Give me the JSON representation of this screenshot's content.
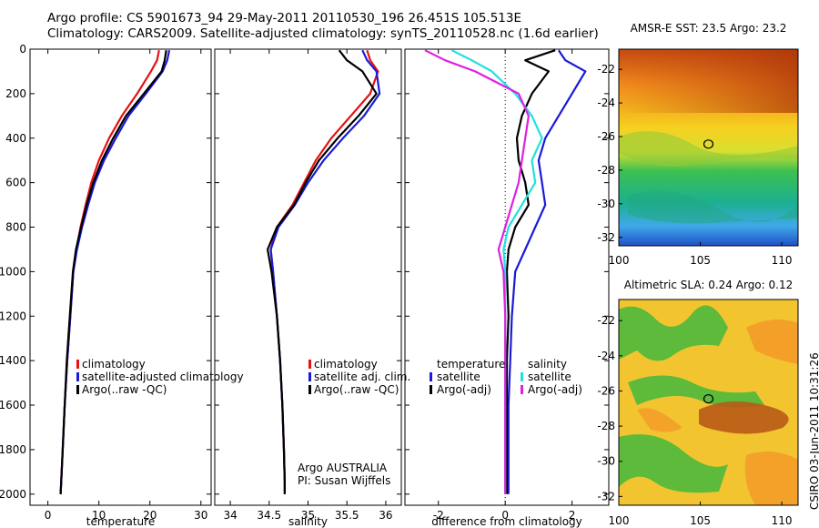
{
  "header": {
    "line1": "Argo profile: CS 5901673_94 29-May-2011 20110530_196 26.451S 105.513E",
    "line2": "Climatology: CARS2009. Satellite-adjusted climatology: synTS_20110528.nc (1.6d earlier)"
  },
  "side_label": "CSIRO 03-Jun-2011 10:31:26",
  "colors": {
    "red": "#e81010",
    "blue": "#1a1ad8",
    "black": "#000000",
    "cyan": "#22e0e0",
    "magenta": "#e020e0"
  },
  "chart_data": [
    {
      "id": "temperature",
      "type": "line",
      "xlabel": "temperature",
      "xlim": [
        -3.5,
        32
      ],
      "xticks": [
        0,
        10,
        20,
        30
      ],
      "ylim": [
        0,
        2050
      ],
      "yticks": [
        0,
        200,
        400,
        600,
        800,
        1000,
        1200,
        1400,
        1600,
        1800,
        2000
      ],
      "y_reversed": true,
      "legend": [
        "climatology",
        "satellite-adjusted climatology",
        "Argo(..raw -QC)"
      ],
      "series": [
        {
          "name": "climatology",
          "color": "red",
          "x": [
            21.8,
            21.4,
            20.2,
            17.5,
            14.5,
            12.0,
            10.0,
            8.5,
            7.4,
            6.4,
            5.6,
            5.0,
            4.4,
            3.8,
            3.3,
            2.9,
            2.6,
            2.5
          ],
          "y": [
            5,
            50,
            100,
            200,
            300,
            400,
            500,
            600,
            700,
            800,
            900,
            1000,
            1200,
            1400,
            1600,
            1800,
            1950,
            2000
          ]
        },
        {
          "name": "satellite-adjusted climatology",
          "color": "blue",
          "x": [
            23.8,
            23.4,
            22.5,
            19.2,
            15.8,
            13.3,
            11.0,
            9.2,
            7.9,
            6.7,
            5.7,
            5.0,
            4.4,
            3.8,
            3.3,
            2.9,
            2.6,
            2.5
          ],
          "y": [
            5,
            50,
            100,
            200,
            300,
            400,
            500,
            600,
            700,
            800,
            900,
            1000,
            1200,
            1400,
            1600,
            1800,
            1950,
            2000
          ]
        },
        {
          "name": "Argo(..raw -QC)",
          "color": "black",
          "x": [
            23.2,
            22.9,
            22.3,
            18.8,
            15.3,
            12.8,
            10.6,
            8.9,
            7.6,
            6.5,
            5.5,
            4.9,
            4.3,
            3.7,
            3.3,
            2.9,
            2.6,
            2.5
          ],
          "y": [
            5,
            50,
            100,
            200,
            300,
            400,
            500,
            600,
            700,
            800,
            900,
            1000,
            1200,
            1400,
            1600,
            1800,
            1950,
            2000
          ]
        }
      ]
    },
    {
      "id": "salinity",
      "type": "line",
      "xlabel": "salinity",
      "xlim": [
        33.8,
        36.2
      ],
      "xticks": [
        34,
        34.5,
        35,
        35.5,
        36
      ],
      "ylim": [
        0,
        2050
      ],
      "y_reversed": true,
      "legend": [
        "climatology",
        "satellite adj. clim.",
        "Argo(..raw -QC)"
      ],
      "annotation": [
        "Argo AUSTRALIA",
        "PI: Susan Wijffels"
      ],
      "series": [
        {
          "name": "climatology",
          "color": "red",
          "x": [
            35.76,
            35.8,
            35.9,
            35.8,
            35.55,
            35.3,
            35.1,
            34.95,
            34.8,
            34.6,
            34.52,
            34.55,
            34.6,
            34.64,
            34.67,
            34.69,
            34.7,
            34.7
          ],
          "y": [
            5,
            50,
            100,
            200,
            300,
            400,
            500,
            600,
            700,
            800,
            900,
            1000,
            1200,
            1400,
            1600,
            1800,
            1950,
            2000
          ]
        },
        {
          "name": "satellite adj. clim.",
          "color": "blue",
          "x": [
            35.7,
            35.76,
            35.88,
            35.92,
            35.72,
            35.45,
            35.2,
            35.0,
            34.83,
            34.62,
            34.52,
            34.55,
            34.6,
            34.64,
            34.67,
            34.69,
            34.7,
            34.7
          ],
          "y": [
            5,
            50,
            100,
            200,
            300,
            400,
            500,
            600,
            700,
            800,
            900,
            1000,
            1200,
            1400,
            1600,
            1800,
            1950,
            2000
          ]
        },
        {
          "name": "Argo(..raw -QC)",
          "color": "black",
          "x": [
            35.4,
            35.5,
            35.7,
            35.88,
            35.65,
            35.38,
            35.14,
            34.97,
            34.82,
            34.6,
            34.48,
            34.53,
            34.6,
            34.64,
            34.67,
            34.69,
            34.7,
            34.7
          ],
          "y": [
            5,
            50,
            100,
            200,
            300,
            400,
            500,
            600,
            700,
            800,
            900,
            1000,
            1200,
            1400,
            1600,
            1800,
            1950,
            2000
          ]
        }
      ]
    },
    {
      "id": "difference",
      "type": "line",
      "xlabel": "difference from climatology",
      "xlim": [
        -3,
        3.1
      ],
      "xticks": [
        -2,
        0,
        2
      ],
      "ylim": [
        0,
        2050
      ],
      "y_reversed": true,
      "legend_groups": [
        {
          "title": "temperature",
          "entries": [
            "satellite",
            "Argo(-adj)"
          ]
        },
        {
          "title": "salinity",
          "entries": [
            "satellite",
            "Argo(-adj)"
          ]
        }
      ],
      "series": [
        {
          "name": "temperature satellite",
          "color": "blue",
          "x": [
            1.6,
            1.8,
            2.4,
            2.0,
            1.6,
            1.2,
            1.0,
            1.1,
            1.2,
            0.9,
            0.6,
            0.3,
            0.2,
            0.15,
            0.1,
            0.1,
            0.1,
            0.1
          ],
          "y": [
            5,
            50,
            100,
            200,
            300,
            400,
            500,
            600,
            700,
            800,
            900,
            1000,
            1200,
            1400,
            1600,
            1800,
            1950,
            2000
          ]
        },
        {
          "name": "temperature Argo(-adj)",
          "color": "black",
          "x": [
            1.5,
            0.6,
            1.3,
            0.8,
            0.5,
            0.35,
            0.4,
            0.6,
            0.7,
            0.3,
            0.1,
            0.05,
            0.1,
            0.05,
            0.05,
            0.05,
            0.05,
            0.05
          ],
          "y": [
            5,
            50,
            100,
            200,
            300,
            400,
            500,
            600,
            700,
            800,
            900,
            1000,
            1200,
            1400,
            1600,
            1800,
            1950,
            2000
          ]
        },
        {
          "name": "salinity satellite",
          "color": "cyan",
          "x": [
            -1.6,
            -1.0,
            -0.4,
            0.3,
            0.8,
            1.1,
            0.8,
            0.9,
            0.5,
            0.1,
            -0.05,
            0.0,
            0.0,
            0.0,
            0.0,
            0.0,
            0.0,
            0.0
          ],
          "y": [
            5,
            50,
            100,
            200,
            300,
            400,
            500,
            600,
            700,
            800,
            900,
            1000,
            1200,
            1400,
            1600,
            1800,
            1950,
            2000
          ]
        },
        {
          "name": "salinity Argo(-adj)",
          "color": "magenta",
          "x": [
            -2.4,
            -1.8,
            -0.9,
            0.4,
            0.7,
            0.6,
            0.5,
            0.4,
            0.2,
            0.0,
            -0.2,
            -0.05,
            0.0,
            0.0,
            0.0,
            0.0,
            0.0,
            0.0
          ],
          "y": [
            5,
            50,
            100,
            200,
            300,
            400,
            500,
            600,
            700,
            800,
            900,
            1000,
            1200,
            1400,
            1600,
            1800,
            1950,
            2000
          ]
        }
      ]
    },
    {
      "id": "sst_map",
      "type": "heatmap",
      "title": "AMSR-E SST: 23.5 Argo: 23.2",
      "xlim": [
        100,
        111
      ],
      "xticks": [
        100,
        105,
        110
      ],
      "ylim": [
        -32.5,
        -20.8
      ],
      "yticks": [
        -22,
        -24,
        -26,
        -28,
        -30,
        -32
      ],
      "marker": {
        "lon": 105.5,
        "lat": -26.45
      }
    },
    {
      "id": "sla_map",
      "type": "heatmap",
      "title": "Altimetric SLA: 0.24 Argo: 0.12",
      "xlim": [
        100,
        111
      ],
      "xticks": [
        100,
        105,
        110
      ],
      "ylim": [
        -32.5,
        -20.8
      ],
      "yticks": [
        -22,
        -24,
        -26,
        -28,
        -30,
        -32
      ],
      "marker": {
        "lon": 105.5,
        "lat": -26.45
      }
    }
  ]
}
